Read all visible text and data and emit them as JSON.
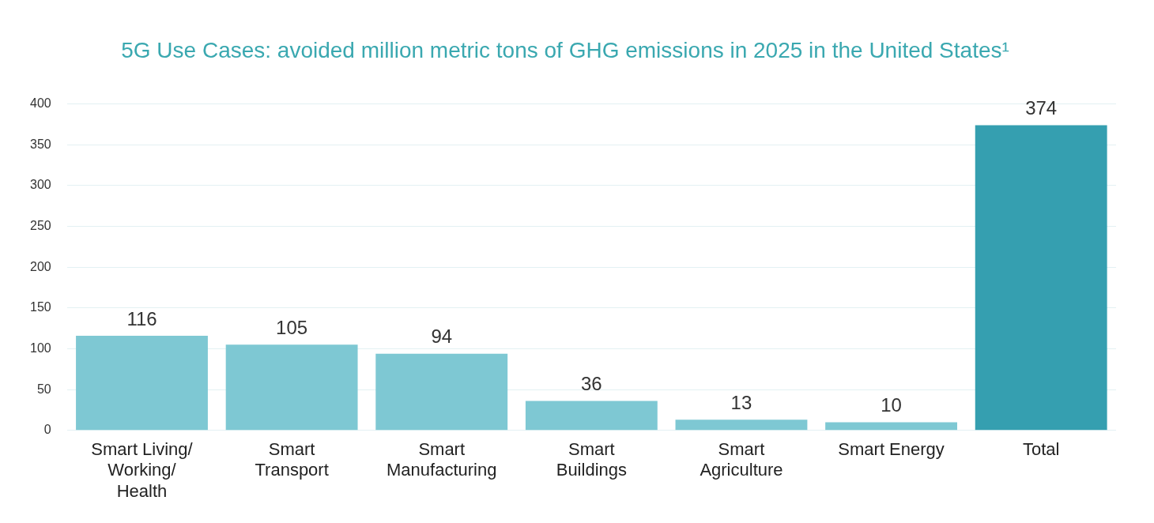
{
  "chart_data": {
    "type": "bar",
    "title": "5G Use Cases: avoided million metric tons of GHG emissions in 2025 in the United States¹",
    "categories": [
      "Smart Living/ Working/ Health",
      "Smart Transport",
      "Smart Manufacturing",
      "Smart Buildings",
      "Smart Agriculture",
      "Smart Energy",
      "Total"
    ],
    "values": [
      116,
      105,
      94,
      36,
      13,
      10,
      374
    ],
    "colors": [
      "#7ec8d3",
      "#7ec8d3",
      "#7ec8d3",
      "#7ec8d3",
      "#7ec8d3",
      "#7ec8d3",
      "#359fb0"
    ],
    "ylim": [
      0,
      400
    ],
    "yticks": [
      0,
      50,
      100,
      150,
      200,
      250,
      300,
      350,
      400
    ],
    "grid": "y",
    "data_labels": true
  }
}
